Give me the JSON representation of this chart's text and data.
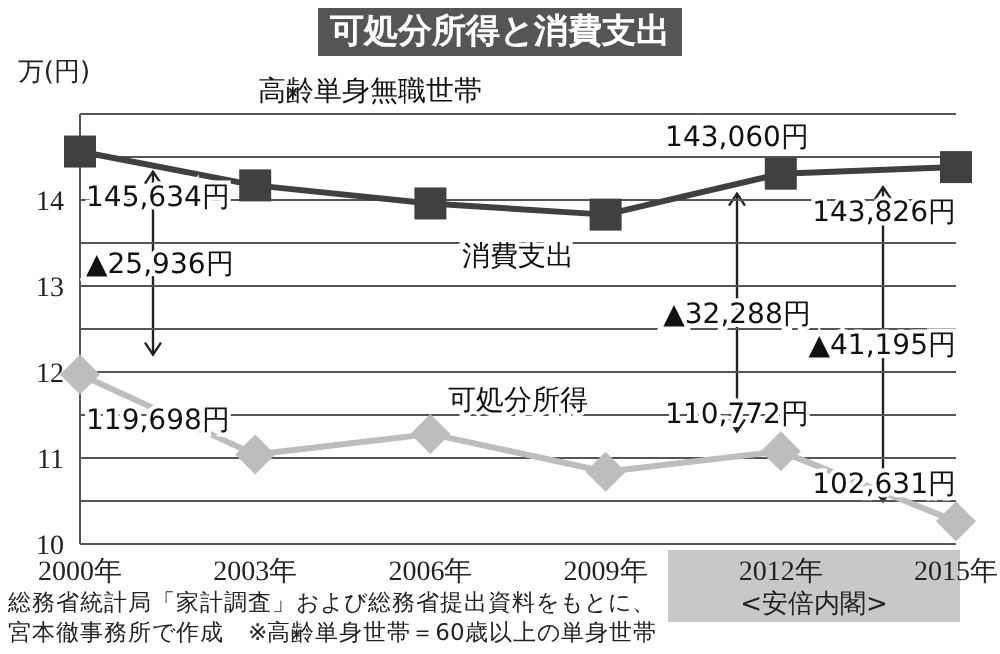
{
  "chart_data": {
    "type": "line",
    "title": "可処分所得と消費支出",
    "subtitle": "高齢単身無職世帯",
    "ylabel": "万(円)",
    "categories": [
      "2000年",
      "2003年",
      "2006年",
      "2009年",
      "2012年",
      "2015年"
    ],
    "series": [
      {
        "name": "消費支出",
        "color": "#404040",
        "marker": "square",
        "values": [
          14.5634,
          14.17,
          13.96,
          13.83,
          14.306,
          14.3826
        ]
      },
      {
        "name": "可処分所得",
        "color": "#bdbdbd",
        "marker": "diamond",
        "values": [
          11.9698,
          11.04,
          11.28,
          10.84,
          11.0772,
          10.2631
        ]
      }
    ],
    "ylim": [
      10,
      15
    ],
    "yticks": [
      10,
      {
        "value": 10.5,
        "label": null
      },
      11,
      {
        "value": 11.5,
        "label": null
      },
      12,
      {
        "value": 12.5,
        "label": null
      },
      13,
      {
        "value": 13.5,
        "label": null
      },
      14,
      {
        "value": 14.5,
        "label": null
      },
      {
        "value": 15,
        "label": null
      }
    ],
    "grid": "y",
    "legend": false,
    "annotations": [
      {
        "text": "145,634円",
        "x": "2000年",
        "y": 14.5634
      },
      {
        "text": "143,060円",
        "x": "2012年",
        "y": 14.306
      },
      {
        "text": "143,826円",
        "x": "2015年",
        "y": 14.3826
      },
      {
        "text": "119,698円",
        "x": "2000年",
        "y": 11.9698
      },
      {
        "text": "110,772円",
        "x": "2012年",
        "y": 11.0772
      },
      {
        "text": "102,631円",
        "x": "2015年",
        "y": 10.2631
      },
      "▲25,936円",
      "▲32,288円",
      "▲41,195円",
      "<安倍内閣>",
      "総務省統計局「家計調査」および総務省提出資料をもとに、宮本徹事務所で作成　※高齢単身世帯＝60歳以上の単身世帯"
    ]
  }
}
